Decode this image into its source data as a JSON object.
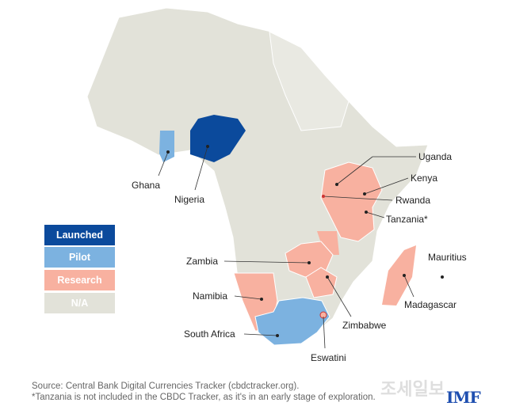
{
  "legend": [
    {
      "label": "Launched",
      "color": "#0b4a9c"
    },
    {
      "label": "Pilot",
      "color": "#7cb2e0"
    },
    {
      "label": "Research",
      "color": "#f8b1a0"
    },
    {
      "label": "N/A",
      "color": "#e2e2d9"
    }
  ],
  "countries": {
    "nigeria": {
      "label": "Nigeria",
      "status": "Launched"
    },
    "ghana": {
      "label": "Ghana",
      "status": "Pilot"
    },
    "uganda": {
      "label": "Uganda",
      "status": "Research"
    },
    "kenya": {
      "label": "Kenya",
      "status": "Research"
    },
    "rwanda": {
      "label": "Rwanda",
      "status": "Research"
    },
    "tanzania": {
      "label": "Tanzania*",
      "status": "Research"
    },
    "zambia": {
      "label": "Zambia",
      "status": "Research"
    },
    "namibia": {
      "label": "Namibia",
      "status": "Research"
    },
    "zimbabwe": {
      "label": "Zimbabwe",
      "status": "Research"
    },
    "madagascar": {
      "label": "Madagascar",
      "status": "Research"
    },
    "mauritius": {
      "label": "Mauritius",
      "status": "Research"
    },
    "south_africa": {
      "label": "South Africa",
      "status": "Pilot"
    },
    "eswatini": {
      "label": "Eswatini",
      "status": "Research"
    }
  },
  "source": "Source: Central Bank Digital Currencies Tracker (cbdctracker.org).",
  "footnote": "*Tanzania is not included in the CBDC Tracker, as it's in an early stage of exploration.",
  "logo": "IMF",
  "watermark": "조세일보"
}
